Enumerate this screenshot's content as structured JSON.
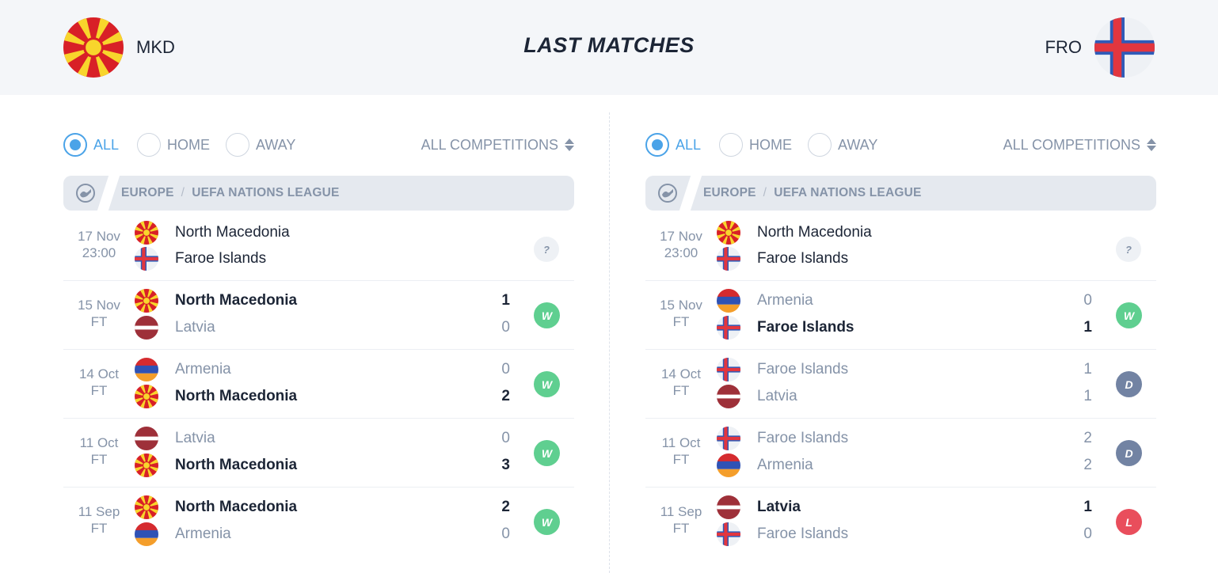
{
  "header": {
    "title": "LAST MATCHES",
    "home_code": "MKD",
    "away_code": "FRO"
  },
  "colors": {
    "accent": "#4aa3e8",
    "win": "#5fcf90",
    "draw": "#7283a3",
    "loss": "#e94e5c",
    "muted": "#8593a8",
    "dark": "#1c2536"
  },
  "flags": {
    "mkd": {
      "bg": "#d82027",
      "sun": "#f8d52c"
    },
    "fro": {
      "bg": "#ffffff",
      "outer_cross": "#2f5bb8",
      "inner_cross": "#e2363f"
    },
    "arm": {
      "top": "#d52b2f",
      "mid": "#2f52b5",
      "bottom": "#f49e2b"
    },
    "lva": {
      "outer": "#9e3039",
      "mid": "#ffffff"
    }
  },
  "panels": [
    {
      "filters": {
        "all": "ALL",
        "home": "HOME",
        "away": "AWAY",
        "active": "all",
        "competition": "ALL COMPETITIONS"
      },
      "league": {
        "region": "EUROPE",
        "name": "UEFA NATIONS LEAGUE",
        "icon": "globe-icon"
      },
      "matches": [
        {
          "date": "17 Nov",
          "time": "23:00",
          "t1": "North Macedonia",
          "f1": "mkd",
          "t2": "Faroe Islands",
          "f2": "fro",
          "s1": "",
          "s2": "",
          "w1": "neutral",
          "w2": "neutral",
          "result": "?"
        },
        {
          "date": "15 Nov",
          "time": "FT",
          "t1": "North Macedonia",
          "f1": "mkd",
          "t2": "Latvia",
          "f2": "lva",
          "s1": "1",
          "s2": "0",
          "w1": "win",
          "w2": "",
          "result": "W"
        },
        {
          "date": "14 Oct",
          "time": "FT",
          "t1": "Armenia",
          "f1": "arm",
          "t2": "North Macedonia",
          "f2": "mkd",
          "s1": "0",
          "s2": "2",
          "w1": "",
          "w2": "win",
          "result": "W"
        },
        {
          "date": "11 Oct",
          "time": "FT",
          "t1": "Latvia",
          "f1": "lva",
          "t2": "North Macedonia",
          "f2": "mkd",
          "s1": "0",
          "s2": "3",
          "w1": "",
          "w2": "win",
          "result": "W"
        },
        {
          "date": "11 Sep",
          "time": "FT",
          "t1": "North Macedonia",
          "f1": "mkd",
          "t2": "Armenia",
          "f2": "arm",
          "s1": "2",
          "s2": "0",
          "w1": "win",
          "w2": "",
          "result": "W"
        }
      ]
    },
    {
      "filters": {
        "all": "ALL",
        "home": "HOME",
        "away": "AWAY",
        "active": "all",
        "competition": "ALL COMPETITIONS"
      },
      "league": {
        "region": "EUROPE",
        "name": "UEFA NATIONS LEAGUE",
        "icon": "globe-icon"
      },
      "matches": [
        {
          "date": "17 Nov",
          "time": "23:00",
          "t1": "North Macedonia",
          "f1": "mkd",
          "t2": "Faroe Islands",
          "f2": "fro",
          "s1": "",
          "s2": "",
          "w1": "neutral",
          "w2": "neutral",
          "result": "?"
        },
        {
          "date": "15 Nov",
          "time": "FT",
          "t1": "Armenia",
          "f1": "arm",
          "t2": "Faroe Islands",
          "f2": "fro",
          "s1": "0",
          "s2": "1",
          "w1": "",
          "w2": "win",
          "result": "W"
        },
        {
          "date": "14 Oct",
          "time": "FT",
          "t1": "Faroe Islands",
          "f1": "fro",
          "t2": "Latvia",
          "f2": "lva",
          "s1": "1",
          "s2": "1",
          "w1": "",
          "w2": "",
          "result": "D"
        },
        {
          "date": "11 Oct",
          "time": "FT",
          "t1": "Faroe Islands",
          "f1": "fro",
          "t2": "Armenia",
          "f2": "arm",
          "s1": "2",
          "s2": "2",
          "w1": "",
          "w2": "",
          "result": "D"
        },
        {
          "date": "11 Sep",
          "time": "FT",
          "t1": "Latvia",
          "f1": "lva",
          "t2": "Faroe Islands",
          "f2": "fro",
          "s1": "1",
          "s2": "0",
          "w1": "win",
          "w2": "",
          "result": "L"
        }
      ]
    }
  ]
}
